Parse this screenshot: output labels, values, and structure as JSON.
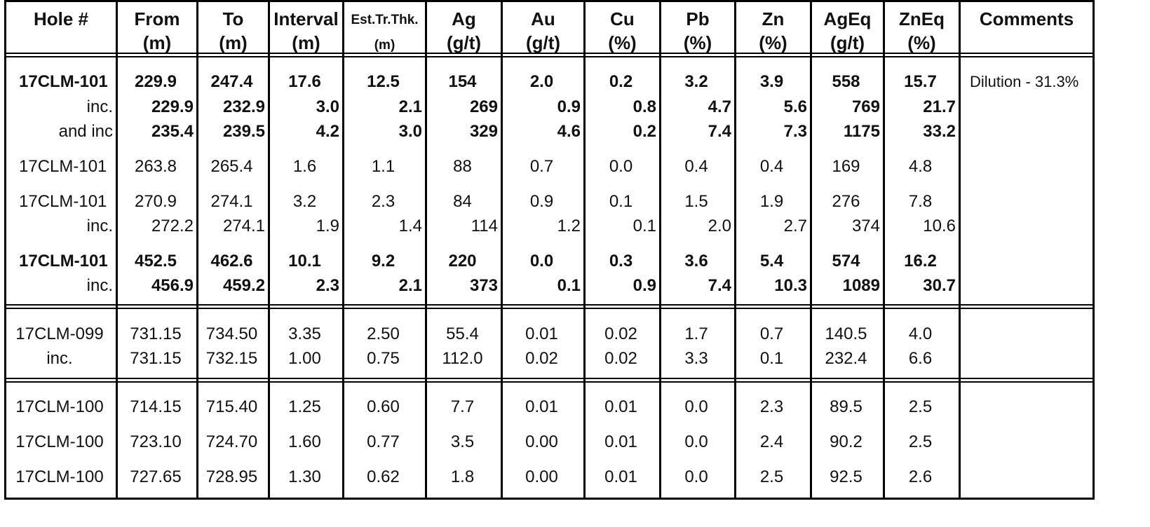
{
  "columns": [
    {
      "key": "hole",
      "l1": "Hole #",
      "l2": ""
    },
    {
      "key": "from",
      "l1": "From",
      "l2": "(m)"
    },
    {
      "key": "to",
      "l1": "To",
      "l2": "(m)"
    },
    {
      "key": "interval",
      "l1": "Interval",
      "l2": "(m)"
    },
    {
      "key": "est",
      "l1": "Est.Tr.Thk.",
      "l2": "(m)"
    },
    {
      "key": "ag",
      "l1": "Ag",
      "l2": "(g/t)"
    },
    {
      "key": "au",
      "l1": "Au",
      "l2": "(g/t)"
    },
    {
      "key": "cu",
      "l1": "Cu",
      "l2": "(%)"
    },
    {
      "key": "pb",
      "l1": "Pb",
      "l2": "(%)"
    },
    {
      "key": "zn",
      "l1": "Zn",
      "l2": "(%)"
    },
    {
      "key": "ageq",
      "l1": "AgEq",
      "l2": "(g/t)"
    },
    {
      "key": "zneq",
      "l1": "ZnEq",
      "l2": "(%)"
    },
    {
      "key": "comments",
      "l1": "Comments",
      "l2": ""
    }
  ],
  "rows": [
    {
      "style": "bold-main",
      "values": [
        "17CLM-101",
        "229.9",
        "247.4",
        "17.6",
        "12.5",
        "154",
        "2.0",
        "0.2",
        "3.2",
        "3.9",
        "558",
        "15.7",
        "Dilution - 31.3%"
      ]
    },
    {
      "style": "bold-inc",
      "values": [
        "inc.",
        "229.9",
        "232.9",
        "3.0",
        "2.1",
        "269",
        "0.9",
        "0.8",
        "4.7",
        "5.6",
        "769",
        "21.7",
        ""
      ]
    },
    {
      "style": "bold-inc",
      "values": [
        "and inc",
        "235.4",
        "239.5",
        "4.2",
        "3.0",
        "329",
        "4.6",
        "0.2",
        "7.4",
        "7.3",
        "1175",
        "33.2",
        ""
      ]
    },
    {
      "style": "plain-main",
      "values": [
        "17CLM-101",
        "263.8",
        "265.4",
        "1.6",
        "1.1",
        "88",
        "0.7",
        "0.0",
        "0.4",
        "0.4",
        "169",
        "4.8",
        ""
      ]
    },
    {
      "style": "plain-main",
      "values": [
        "17CLM-101",
        "270.9",
        "274.1",
        "3.2",
        "2.3",
        "84",
        "0.9",
        "0.1",
        "1.5",
        "1.9",
        "276",
        "7.8",
        ""
      ]
    },
    {
      "style": "plain-inc",
      "values": [
        "inc.",
        "272.2",
        "274.1",
        "1.9",
        "1.4",
        "114",
        "1.2",
        "0.1",
        "2.0",
        "2.7",
        "374",
        "10.6",
        ""
      ]
    },
    {
      "style": "bold-main",
      "values": [
        "17CLM-101",
        "452.5",
        "462.6",
        "10.1",
        "9.2",
        "220",
        "0.0",
        "0.3",
        "3.6",
        "5.4",
        "574",
        "16.2",
        ""
      ]
    },
    {
      "style": "bold-inc",
      "values": [
        "inc.",
        "456.9",
        "459.2",
        "2.3",
        "2.1",
        "373",
        "0.1",
        "0.9",
        "7.4",
        "10.3",
        "1089",
        "30.7",
        ""
      ]
    },
    {
      "style": "center",
      "values": [
        "17CLM-099",
        "731.15",
        "734.50",
        "3.35",
        "2.50",
        "55.4",
        "0.01",
        "0.02",
        "1.7",
        "0.7",
        "140.5",
        "4.0",
        ""
      ]
    },
    {
      "style": "center",
      "values": [
        "inc.",
        "731.15",
        "732.15",
        "1.00",
        "0.75",
        "112.0",
        "0.02",
        "0.02",
        "3.3",
        "0.1",
        "232.4",
        "6.6",
        ""
      ]
    },
    {
      "style": "center",
      "values": [
        "17CLM-100",
        "714.15",
        "715.40",
        "1.25",
        "0.60",
        "7.7",
        "0.01",
        "0.01",
        "0.0",
        "2.3",
        "89.5",
        "2.5",
        ""
      ]
    },
    {
      "style": "center",
      "values": [
        "17CLM-100",
        "723.10",
        "724.70",
        "1.60",
        "0.77",
        "3.5",
        "0.00",
        "0.01",
        "0.0",
        "2.4",
        "90.2",
        "2.5",
        ""
      ]
    },
    {
      "style": "center",
      "values": [
        "17CLM-100",
        "727.65",
        "728.95",
        "1.30",
        "0.62",
        "1.8",
        "0.00",
        "0.01",
        "0.0",
        "2.5",
        "92.5",
        "2.6",
        ""
      ]
    }
  ]
}
